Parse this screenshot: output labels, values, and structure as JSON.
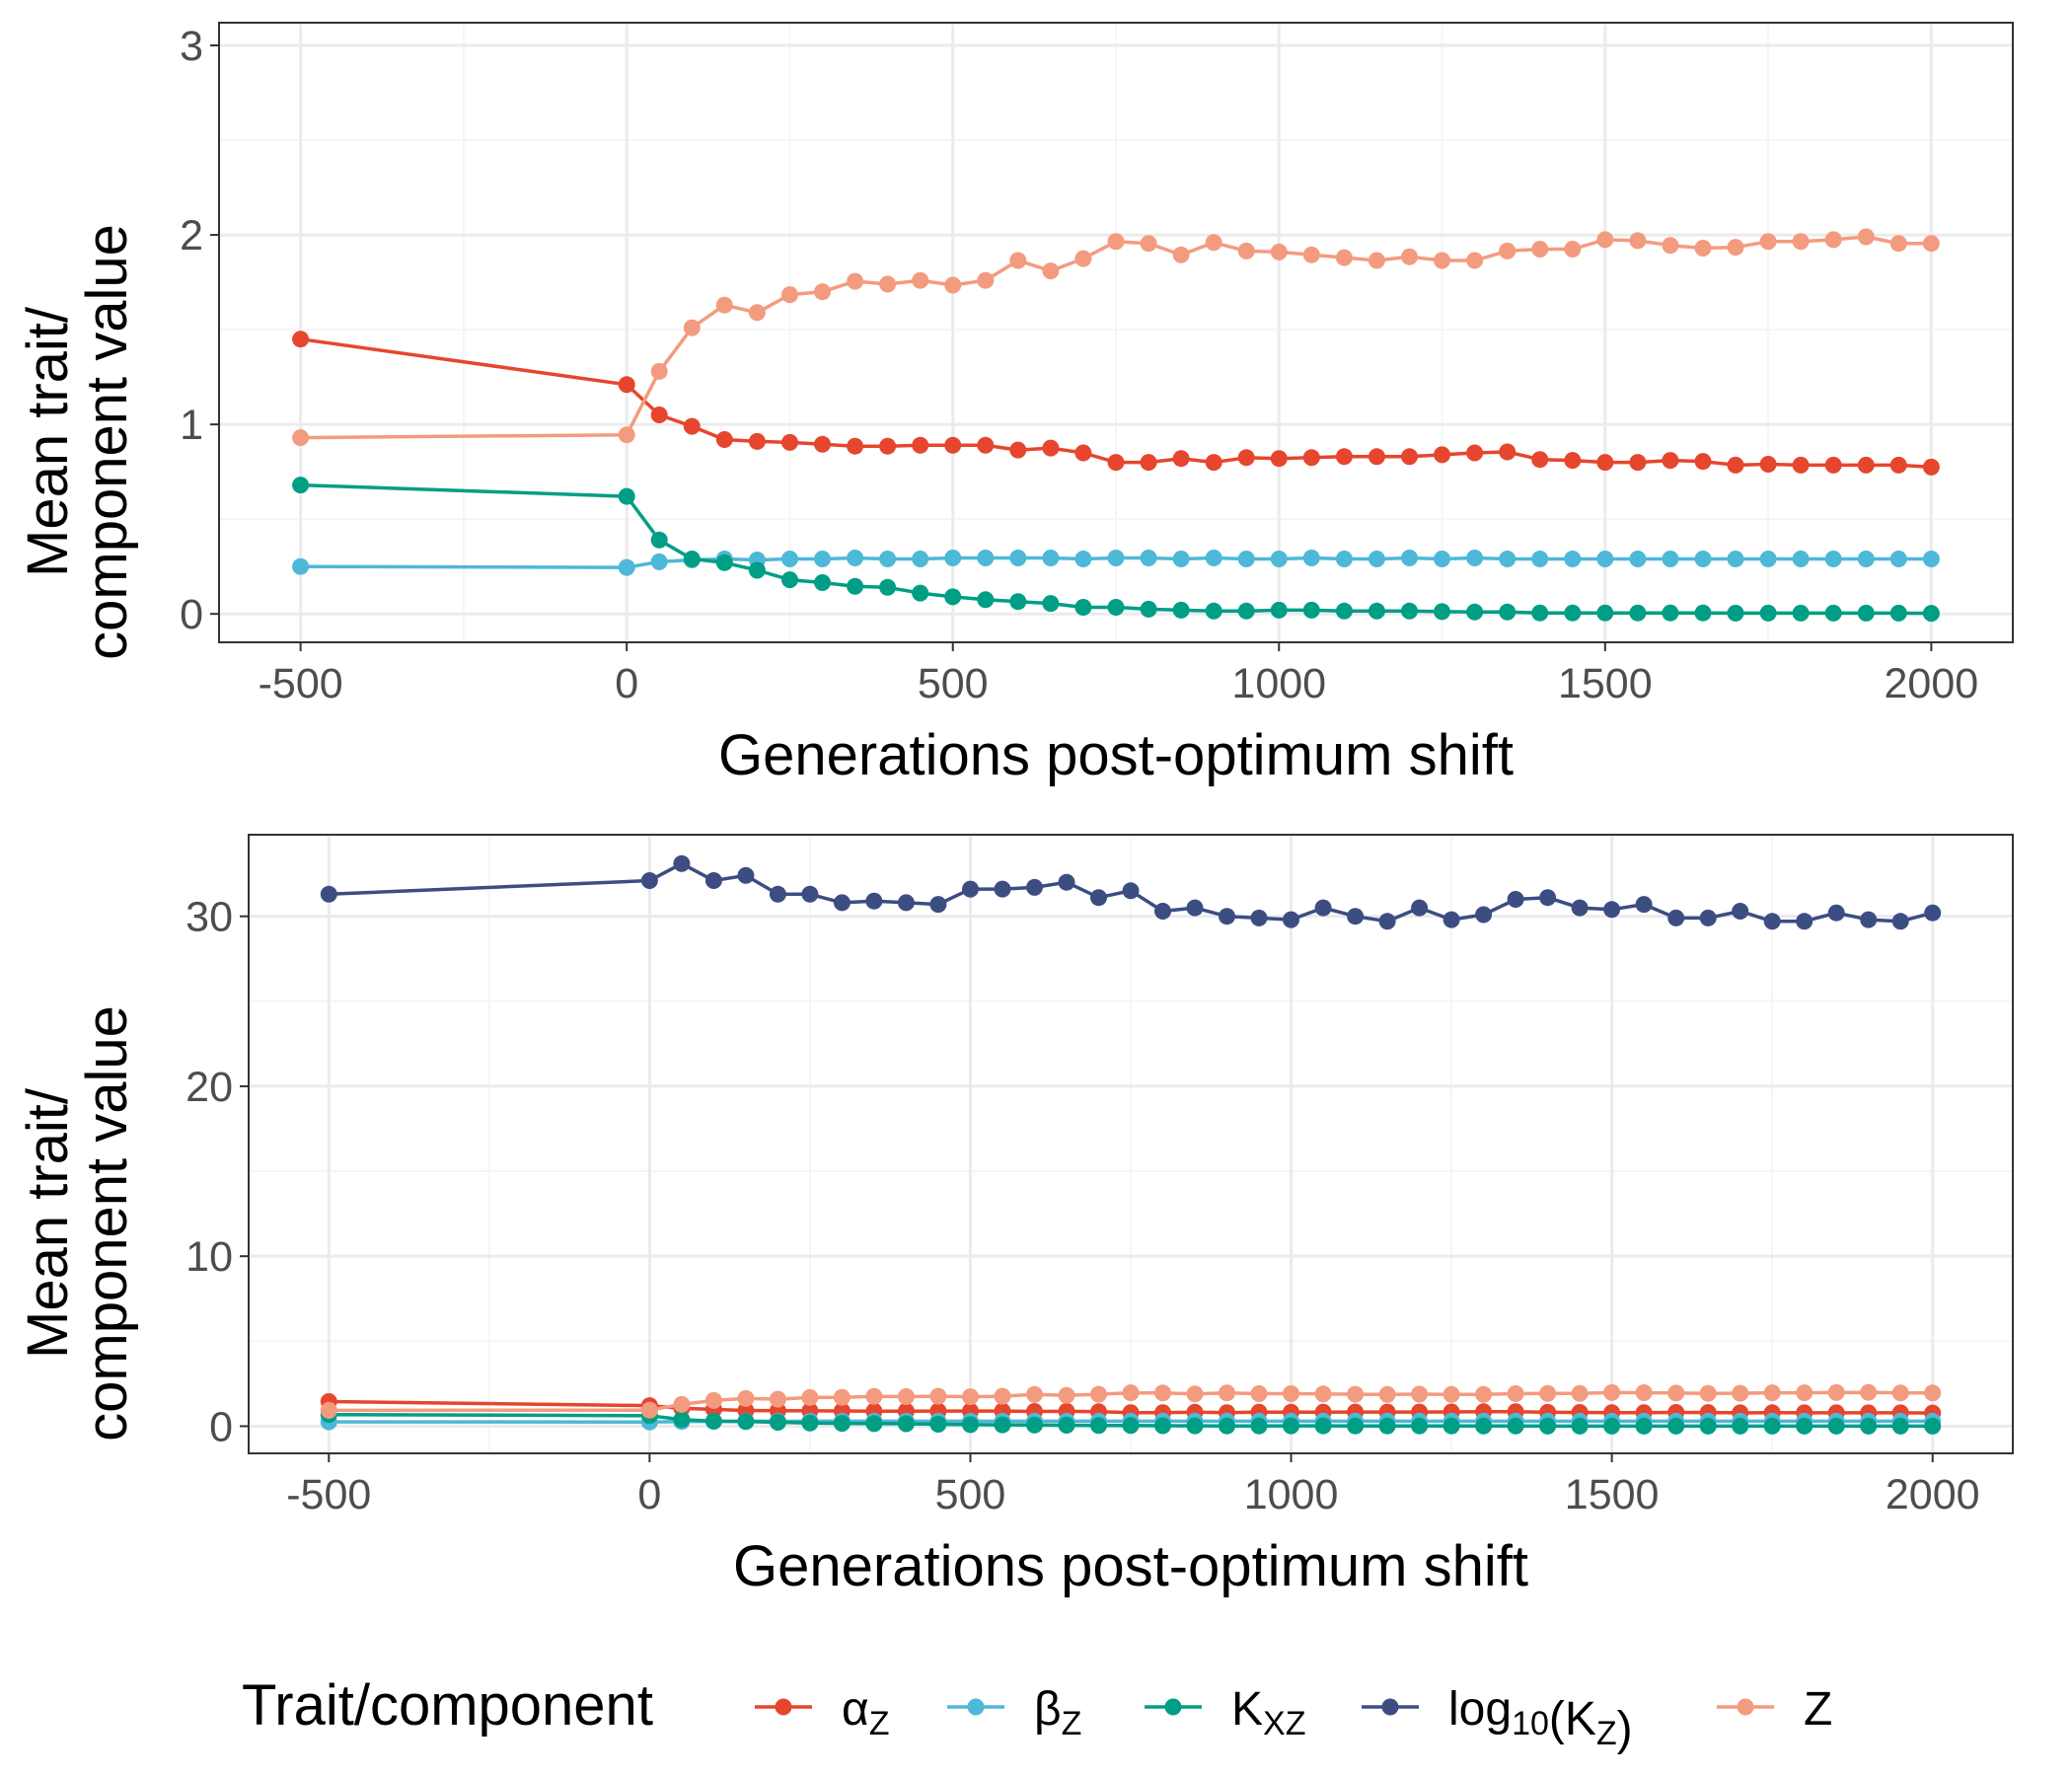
{
  "chart_data": [
    {
      "type": "line",
      "xlabel": "Generations post-optimum shift",
      "ylabel_line1": "Mean trait/",
      "ylabel_line2": "component value",
      "xlim": [
        -625,
        2125
      ],
      "ylim": [
        -0.15,
        3.12
      ],
      "xticks": [
        -500,
        0,
        500,
        1000,
        1500,
        2000
      ],
      "yticks": [
        0,
        1,
        2,
        3
      ],
      "grid": true,
      "series_keys": [
        "alpha_z",
        "beta_z",
        "k_xz",
        "z"
      ]
    },
    {
      "type": "line",
      "xlabel": "Generations post-optimum shift",
      "ylabel_line1": "Mean trait/",
      "ylabel_line2": "component value",
      "xlim": [
        -625,
        2125
      ],
      "ylim": [
        -1.6,
        34.8
      ],
      "xticks": [
        -500,
        0,
        500,
        1000,
        1500,
        2000
      ],
      "yticks": [
        0,
        10,
        20,
        30
      ],
      "grid": true,
      "series_keys": [
        "alpha_z",
        "beta_z",
        "k_xz",
        "log10_kz",
        "z"
      ]
    }
  ],
  "x": [
    -500,
    0,
    50,
    100,
    150,
    200,
    250,
    300,
    350,
    400,
    450,
    500,
    550,
    600,
    650,
    700,
    750,
    800,
    850,
    900,
    950,
    1000,
    1050,
    1100,
    1150,
    1200,
    1250,
    1300,
    1350,
    1400,
    1450,
    1500,
    1550,
    1600,
    1650,
    1700,
    1750,
    1800,
    1850,
    1900,
    1950,
    2000
  ],
  "series": {
    "alpha_z": {
      "color": "#E6462E",
      "values": [
        1.45,
        1.21,
        1.05,
        0.99,
        0.92,
        0.91,
        0.905,
        0.895,
        0.885,
        0.885,
        0.89,
        0.89,
        0.89,
        0.865,
        0.875,
        0.85,
        0.8,
        0.8,
        0.82,
        0.8,
        0.825,
        0.82,
        0.825,
        0.83,
        0.83,
        0.83,
        0.84,
        0.85,
        0.855,
        0.815,
        0.81,
        0.8,
        0.8,
        0.81,
        0.805,
        0.785,
        0.79,
        0.785,
        0.785,
        0.785,
        0.785,
        0.775
      ]
    },
    "beta_z": {
      "color": "#4EB8D8",
      "values": [
        0.25,
        0.245,
        0.275,
        0.285,
        0.29,
        0.285,
        0.29,
        0.29,
        0.295,
        0.29,
        0.29,
        0.295,
        0.295,
        0.295,
        0.295,
        0.29,
        0.295,
        0.295,
        0.29,
        0.295,
        0.29,
        0.29,
        0.295,
        0.29,
        0.29,
        0.295,
        0.29,
        0.295,
        0.29,
        0.29,
        0.29,
        0.29,
        0.29,
        0.29,
        0.29,
        0.29,
        0.29,
        0.29,
        0.29,
        0.29,
        0.29,
        0.29
      ]
    },
    "k_xz": {
      "color": "#009E85",
      "values": [
        0.68,
        0.62,
        0.39,
        0.29,
        0.27,
        0.23,
        0.18,
        0.165,
        0.145,
        0.14,
        0.11,
        0.09,
        0.075,
        0.065,
        0.055,
        0.035,
        0.035,
        0.025,
        0.02,
        0.015,
        0.015,
        0.02,
        0.02,
        0.015,
        0.015,
        0.015,
        0.012,
        0.01,
        0.01,
        0.005,
        0.005,
        0.005,
        0.005,
        0.005,
        0.005,
        0.004,
        0.004,
        0.004,
        0.004,
        0.004,
        0.004,
        0.003
      ]
    },
    "log10_kz": {
      "color": "#3C4D82",
      "values": [
        31.3,
        32.1,
        33.1,
        32.1,
        32.4,
        31.3,
        31.3,
        30.8,
        30.9,
        30.8,
        30.7,
        31.6,
        31.6,
        31.7,
        32.0,
        31.1,
        31.5,
        30.3,
        30.5,
        30.0,
        29.9,
        29.8,
        30.5,
        30.0,
        29.7,
        30.5,
        29.8,
        30.1,
        31.0,
        31.1,
        30.5,
        30.4,
        30.7,
        29.9,
        29.9,
        30.3,
        29.7,
        29.7,
        30.2,
        29.8,
        29.7,
        30.2
      ]
    },
    "z": {
      "color": "#F39B7F",
      "values": [
        0.93,
        0.945,
        1.28,
        1.51,
        1.63,
        1.59,
        1.685,
        1.7,
        1.755,
        1.74,
        1.76,
        1.735,
        1.76,
        1.865,
        1.81,
        1.875,
        1.965,
        1.955,
        1.895,
        1.96,
        1.915,
        1.91,
        1.895,
        1.88,
        1.865,
        1.885,
        1.865,
        1.865,
        1.915,
        1.925,
        1.925,
        1.975,
        1.97,
        1.945,
        1.93,
        1.935,
        1.965,
        1.965,
        1.975,
        1.99,
        1.955,
        1.955
      ]
    }
  },
  "legend": {
    "title": "Trait/component",
    "position": "bottom",
    "items": [
      {
        "key": "alpha_z",
        "base": "α",
        "sub": "Z",
        "tail": ""
      },
      {
        "key": "beta_z",
        "base": "β",
        "sub": "Z",
        "tail": ""
      },
      {
        "key": "k_xz",
        "base": "K",
        "sub": "XZ",
        "tail": ""
      },
      {
        "key": "log10_kz",
        "base": "log",
        "sub": "10",
        "mid": "(K",
        "sub2": "Z",
        "tail": ")"
      },
      {
        "key": "z",
        "base": "Z",
        "sub": "",
        "tail": ""
      }
    ]
  }
}
